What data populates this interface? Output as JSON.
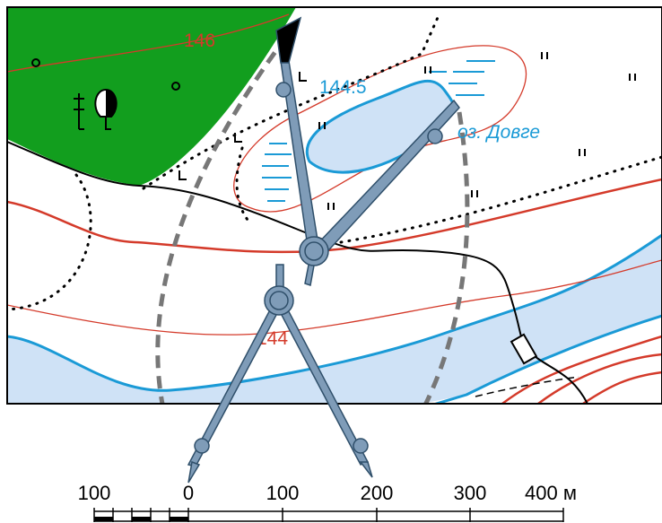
{
  "map": {
    "labels": {
      "contour_146": "146",
      "contour_144_5": "144.5",
      "lake": "оз. Довге",
      "contour_144": "144"
    }
  },
  "scale": {
    "labels": [
      "100",
      "0",
      "100",
      "200",
      "300",
      "400 м"
    ]
  }
}
